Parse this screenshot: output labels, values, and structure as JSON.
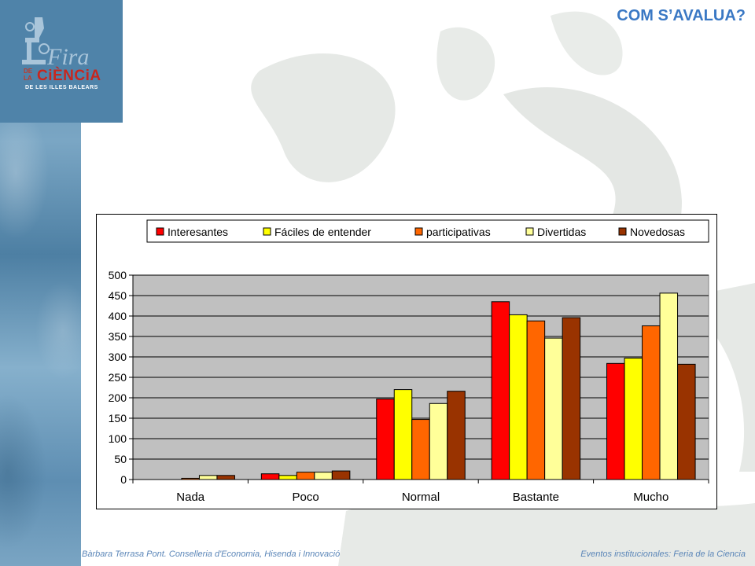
{
  "page": {
    "title": "COM S’AVALUA?",
    "footer_left": "Bàrbara  Terrasa Pont. Conselleria  d'Economia, Hisenda i Innovació",
    "footer_right": "Eventos institucionales: Feria de la Ciencia"
  },
  "logo": {
    "fira": "Fira",
    "de": "DE",
    "la": "LA",
    "ciencia": "CiÈNCiA",
    "subtitle": "DE LES ILLES BALEARS"
  },
  "colors": {
    "accent": "#3a78c4",
    "plot_bg": "#c0c0c0",
    "logo_bg": "#4f83a9"
  },
  "chart_data": {
    "type": "bar",
    "categories": [
      "Nada",
      "Poco",
      "Normal",
      "Bastante",
      "Mucho"
    ],
    "series": [
      {
        "name": "Interesantes",
        "color": "#ff0000",
        "values": [
          0,
          14,
          197,
          435,
          284
        ]
      },
      {
        "name": "Fáciles de entender",
        "color": "#ffff00",
        "values": [
          0,
          10,
          220,
          403,
          297
        ]
      },
      {
        "name": "participativas",
        "color": "#ff6600",
        "values": [
          3,
          18,
          147,
          388,
          376
        ]
      },
      {
        "name": "Divertidas",
        "color": "#ffff99",
        "values": [
          10,
          18,
          186,
          346,
          456
        ]
      },
      {
        "name": "Novedosas",
        "color": "#993300",
        "values": [
          10,
          21,
          216,
          396,
          282
        ]
      }
    ],
    "ylim": [
      0,
      500
    ],
    "yticks": [
      0,
      50,
      100,
      150,
      200,
      250,
      300,
      350,
      400,
      450,
      500
    ],
    "grid": true,
    "legend_position": "top"
  }
}
